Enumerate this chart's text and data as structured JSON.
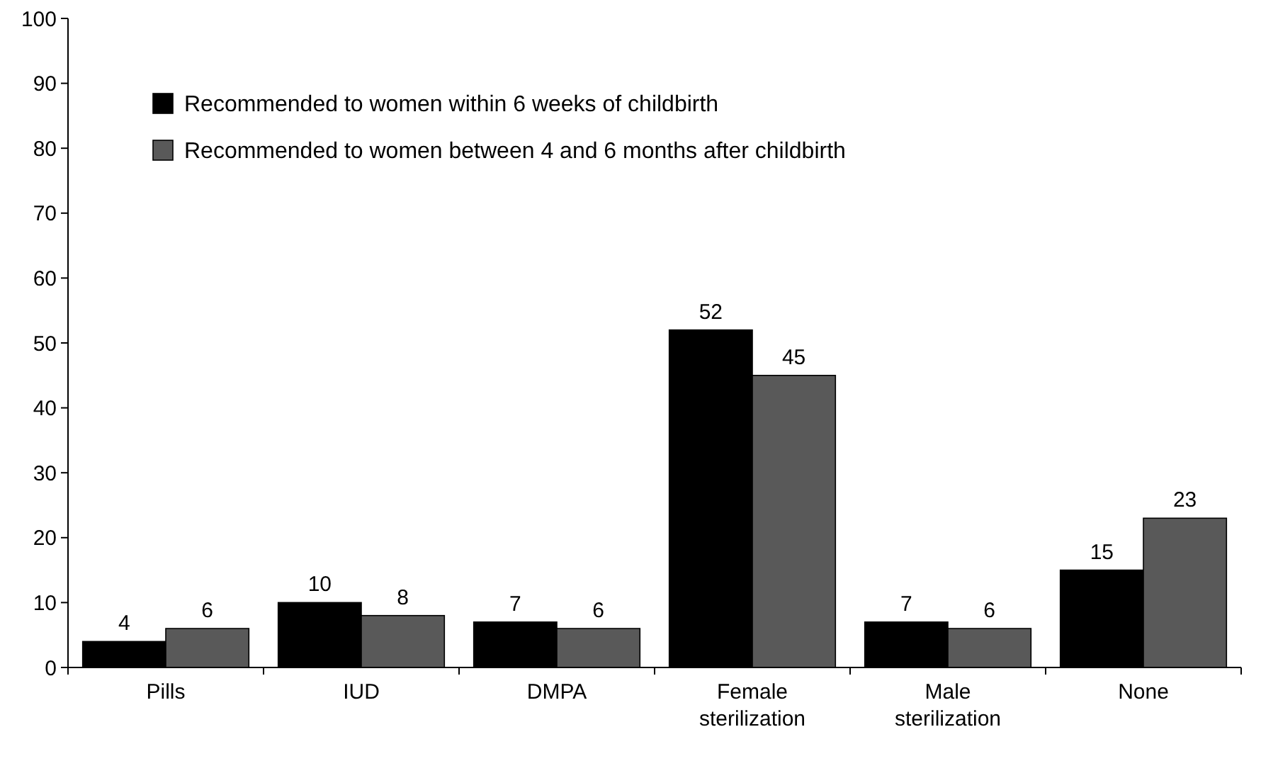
{
  "chart_data": {
    "type": "bar",
    "categories": [
      "Pills",
      "IUD",
      "DMPA",
      "Female sterilization",
      "Male sterilization",
      "None"
    ],
    "series": [
      {
        "name": "Recommended to women within 6 weeks of childbirth",
        "color": "#000000",
        "values": [
          4,
          10,
          7,
          52,
          7,
          15
        ]
      },
      {
        "name": "Recommended to women between 4 and 6 months after childbirth",
        "color": "#595959",
        "values": [
          6,
          8,
          6,
          45,
          6,
          23
        ]
      }
    ],
    "ylim": [
      0,
      100
    ],
    "yticks": [
      0,
      10,
      20,
      30,
      40,
      50,
      60,
      70,
      80,
      90,
      100
    ],
    "data_labels": true,
    "legend": "top left",
    "grid": false
  }
}
